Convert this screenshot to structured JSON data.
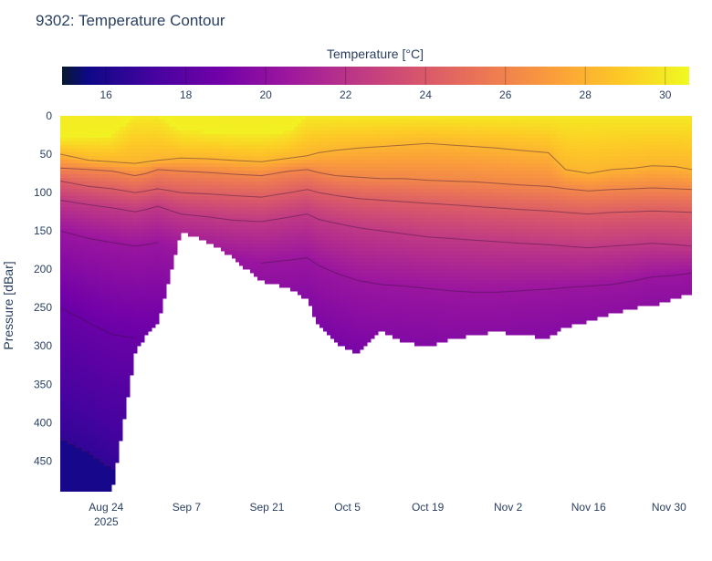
{
  "chart_data": {
    "type": "heatmap",
    "subtype": "contour",
    "title": "9302: Temperature Contour",
    "xlabel": "",
    "ylabel": "Pressure [dBar]",
    "colorbar_title": "Temperature [°C]",
    "colorscale": "plasma",
    "colorbar_range": [
      14.9,
      30.6
    ],
    "colorbar_ticks": [
      16,
      18,
      20,
      22,
      24,
      26,
      28,
      30
    ],
    "x_start": "2025-08-16",
    "x_end": "2025-12-04",
    "x_ticks": [
      {
        "date": "2025-08-24",
        "label": "Aug 24",
        "sublabel": "2025"
      },
      {
        "date": "2025-09-07",
        "label": "Sep 7",
        "sublabel": ""
      },
      {
        "date": "2025-09-21",
        "label": "Sep 21",
        "sublabel": ""
      },
      {
        "date": "2025-10-05",
        "label": "Oct 5",
        "sublabel": ""
      },
      {
        "date": "2025-10-19",
        "label": "Oct 19",
        "sublabel": ""
      },
      {
        "date": "2025-11-02",
        "label": "Nov 2",
        "sublabel": ""
      },
      {
        "date": "2025-11-16",
        "label": "Nov 16",
        "sublabel": ""
      },
      {
        "date": "2025-11-30",
        "label": "Nov 30",
        "sublabel": ""
      }
    ],
    "ylim": [
      0,
      490
    ],
    "y_reversed": true,
    "y_ticks": [
      0,
      50,
      100,
      150,
      200,
      250,
      300,
      350,
      400,
      450
    ],
    "contour_levels": [
      16,
      18,
      20,
      22,
      24,
      26,
      28
    ],
    "profile_days": [
      0,
      5,
      9,
      13,
      15,
      17,
      21,
      26,
      30,
      35,
      40,
      43,
      45,
      48,
      52,
      56,
      60,
      64,
      68,
      72,
      76,
      80,
      85,
      88,
      92,
      96,
      100,
      103,
      107,
      110
    ],
    "profile_max_depth": [
      490,
      490,
      490,
      310,
      285,
      270,
      150,
      165,
      185,
      215,
      225,
      240,
      275,
      295,
      310,
      280,
      295,
      300,
      292,
      285,
      282,
      285,
      290,
      275,
      268,
      258,
      250,
      248,
      238,
      232
    ],
    "isotherm_depths": {
      "30": [
        30,
        28,
        26,
        0,
        0,
        0,
        20,
        22,
        24,
        25,
        20,
        0,
        0,
        0,
        0,
        0,
        0,
        0,
        0,
        0,
        0,
        0,
        0,
        0,
        0,
        0,
        0,
        0,
        0,
        0
      ],
      "28": [
        50,
        58,
        60,
        62,
        60,
        58,
        55,
        56,
        58,
        60,
        55,
        52,
        48,
        45,
        42,
        40,
        38,
        36,
        38,
        40,
        42,
        45,
        48,
        70,
        75,
        70,
        68,
        65,
        66,
        70
      ],
      "26": [
        68,
        70,
        72,
        78,
        75,
        70,
        72,
        74,
        76,
        78,
        72,
        70,
        74,
        78,
        80,
        82,
        82,
        84,
        85,
        86,
        88,
        90,
        92,
        95,
        98,
        96,
        95,
        94,
        95,
        96
      ],
      "24": [
        85,
        92,
        95,
        100,
        98,
        95,
        100,
        102,
        104,
        106,
        100,
        96,
        100,
        104,
        108,
        110,
        112,
        114,
        116,
        118,
        120,
        122,
        124,
        126,
        128,
        126,
        125,
        124,
        125,
        126
      ],
      "22": [
        110,
        116,
        120,
        125,
        122,
        118,
        128,
        132,
        136,
        138,
        132,
        128,
        135,
        140,
        146,
        150,
        154,
        158,
        160,
        162,
        164,
        166,
        168,
        170,
        172,
        170,
        168,
        166,
        168,
        170
      ],
      "20": [
        150,
        160,
        165,
        170,
        168,
        165,
        175,
        180,
        186,
        192,
        188,
        185,
        195,
        205,
        215,
        220,
        222,
        225,
        228,
        230,
        230,
        228,
        226,
        224,
        222,
        220,
        215,
        210,
        208,
        205
      ],
      "18": [
        250,
        270,
        285,
        290,
        292,
        290,
        300,
        310,
        320,
        330,
        330,
        320,
        330,
        345,
        360,
        370,
        375,
        380,
        385,
        385,
        380,
        375,
        370,
        365,
        360,
        355,
        350,
        345,
        340,
        335
      ],
      "16": [
        420,
        440,
        460,
        470,
        480,
        490,
        500,
        510,
        520,
        530,
        530,
        520,
        530,
        540,
        550,
        560,
        565,
        570,
        575,
        575,
        570,
        565,
        560,
        555,
        550,
        545,
        540,
        535,
        530,
        525
      ]
    }
  }
}
